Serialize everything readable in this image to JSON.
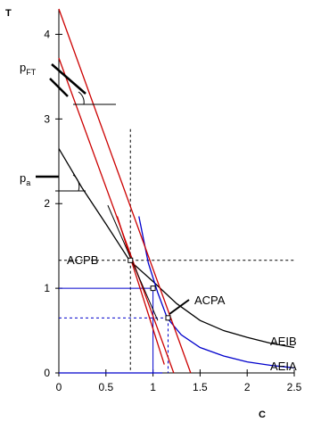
{
  "chart_data": {
    "type": "line",
    "xlabel": "C",
    "ylabel": "T",
    "xlim": [
      0,
      2.5
    ],
    "ylim": [
      0,
      4.3
    ],
    "x_ticks": [
      "0",
      "0.5",
      "1",
      "1.5",
      "2",
      "2.5"
    ],
    "y_ticks": [
      "0",
      "1",
      "2",
      "3",
      "4"
    ],
    "grid": false,
    "series": [
      {
        "name": "AEIB",
        "color": "#000000",
        "x": [
          0,
          0.25,
          0.5,
          0.75,
          1.0,
          1.25,
          1.5,
          1.75,
          2.0,
          2.25,
          2.5
        ],
        "y": [
          2.65,
          2.18,
          1.76,
          1.33,
          1.08,
          0.82,
          0.62,
          0.5,
          0.42,
          0.35,
          0.3
        ]
      },
      {
        "name": "AEIA",
        "color": "#0000cc",
        "x": [
          0,
          1.1,
          0.85,
          0.95,
          1.05,
          1.15,
          1.3,
          1.5,
          1.75,
          2.0,
          2.25,
          2.5
        ],
        "y": [
          0,
          0,
          1.85,
          1.3,
          0.95,
          0.65,
          0.45,
          0.3,
          0.2,
          0.13,
          0.09,
          0.06
        ]
      },
      {
        "name": "budget line (upper)",
        "color": "#cc0000",
        "x": [
          0,
          1.4
        ],
        "y": [
          4.3,
          0
        ]
      },
      {
        "name": "budget line (lower)",
        "color": "#cc0000",
        "x": [
          0,
          1.22
        ],
        "y": [
          3.72,
          0
        ]
      },
      {
        "name": "tangent line",
        "color": "#cc0000",
        "x": [
          0.62,
          1.12
        ],
        "y": [
          1.85,
          0.1
        ]
      }
    ],
    "labels": {
      "p_ft": "p",
      "p_ft_sub": "FT",
      "p_a": "p",
      "p_a_sub": "a",
      "acpb": "ACPB",
      "acpa": "ACPA",
      "aeib": "AEIB",
      "aeia": "AEIA"
    },
    "points": [
      {
        "name": "ACPB",
        "x": 0.76,
        "y": 1.33
      },
      {
        "name": "ACPA",
        "x": 1.16,
        "y": 0.65
      },
      {
        "name": "intersection",
        "x": 1.0,
        "y": 1.0
      }
    ],
    "reference_lines": [
      {
        "x": 0.76,
        "y": 1.33,
        "style": "dashed"
      },
      {
        "x": 1.16,
        "y": 0.65,
        "style": "dashed"
      },
      {
        "x": 1.0,
        "y": 1.0,
        "style": "solid"
      }
    ]
  }
}
